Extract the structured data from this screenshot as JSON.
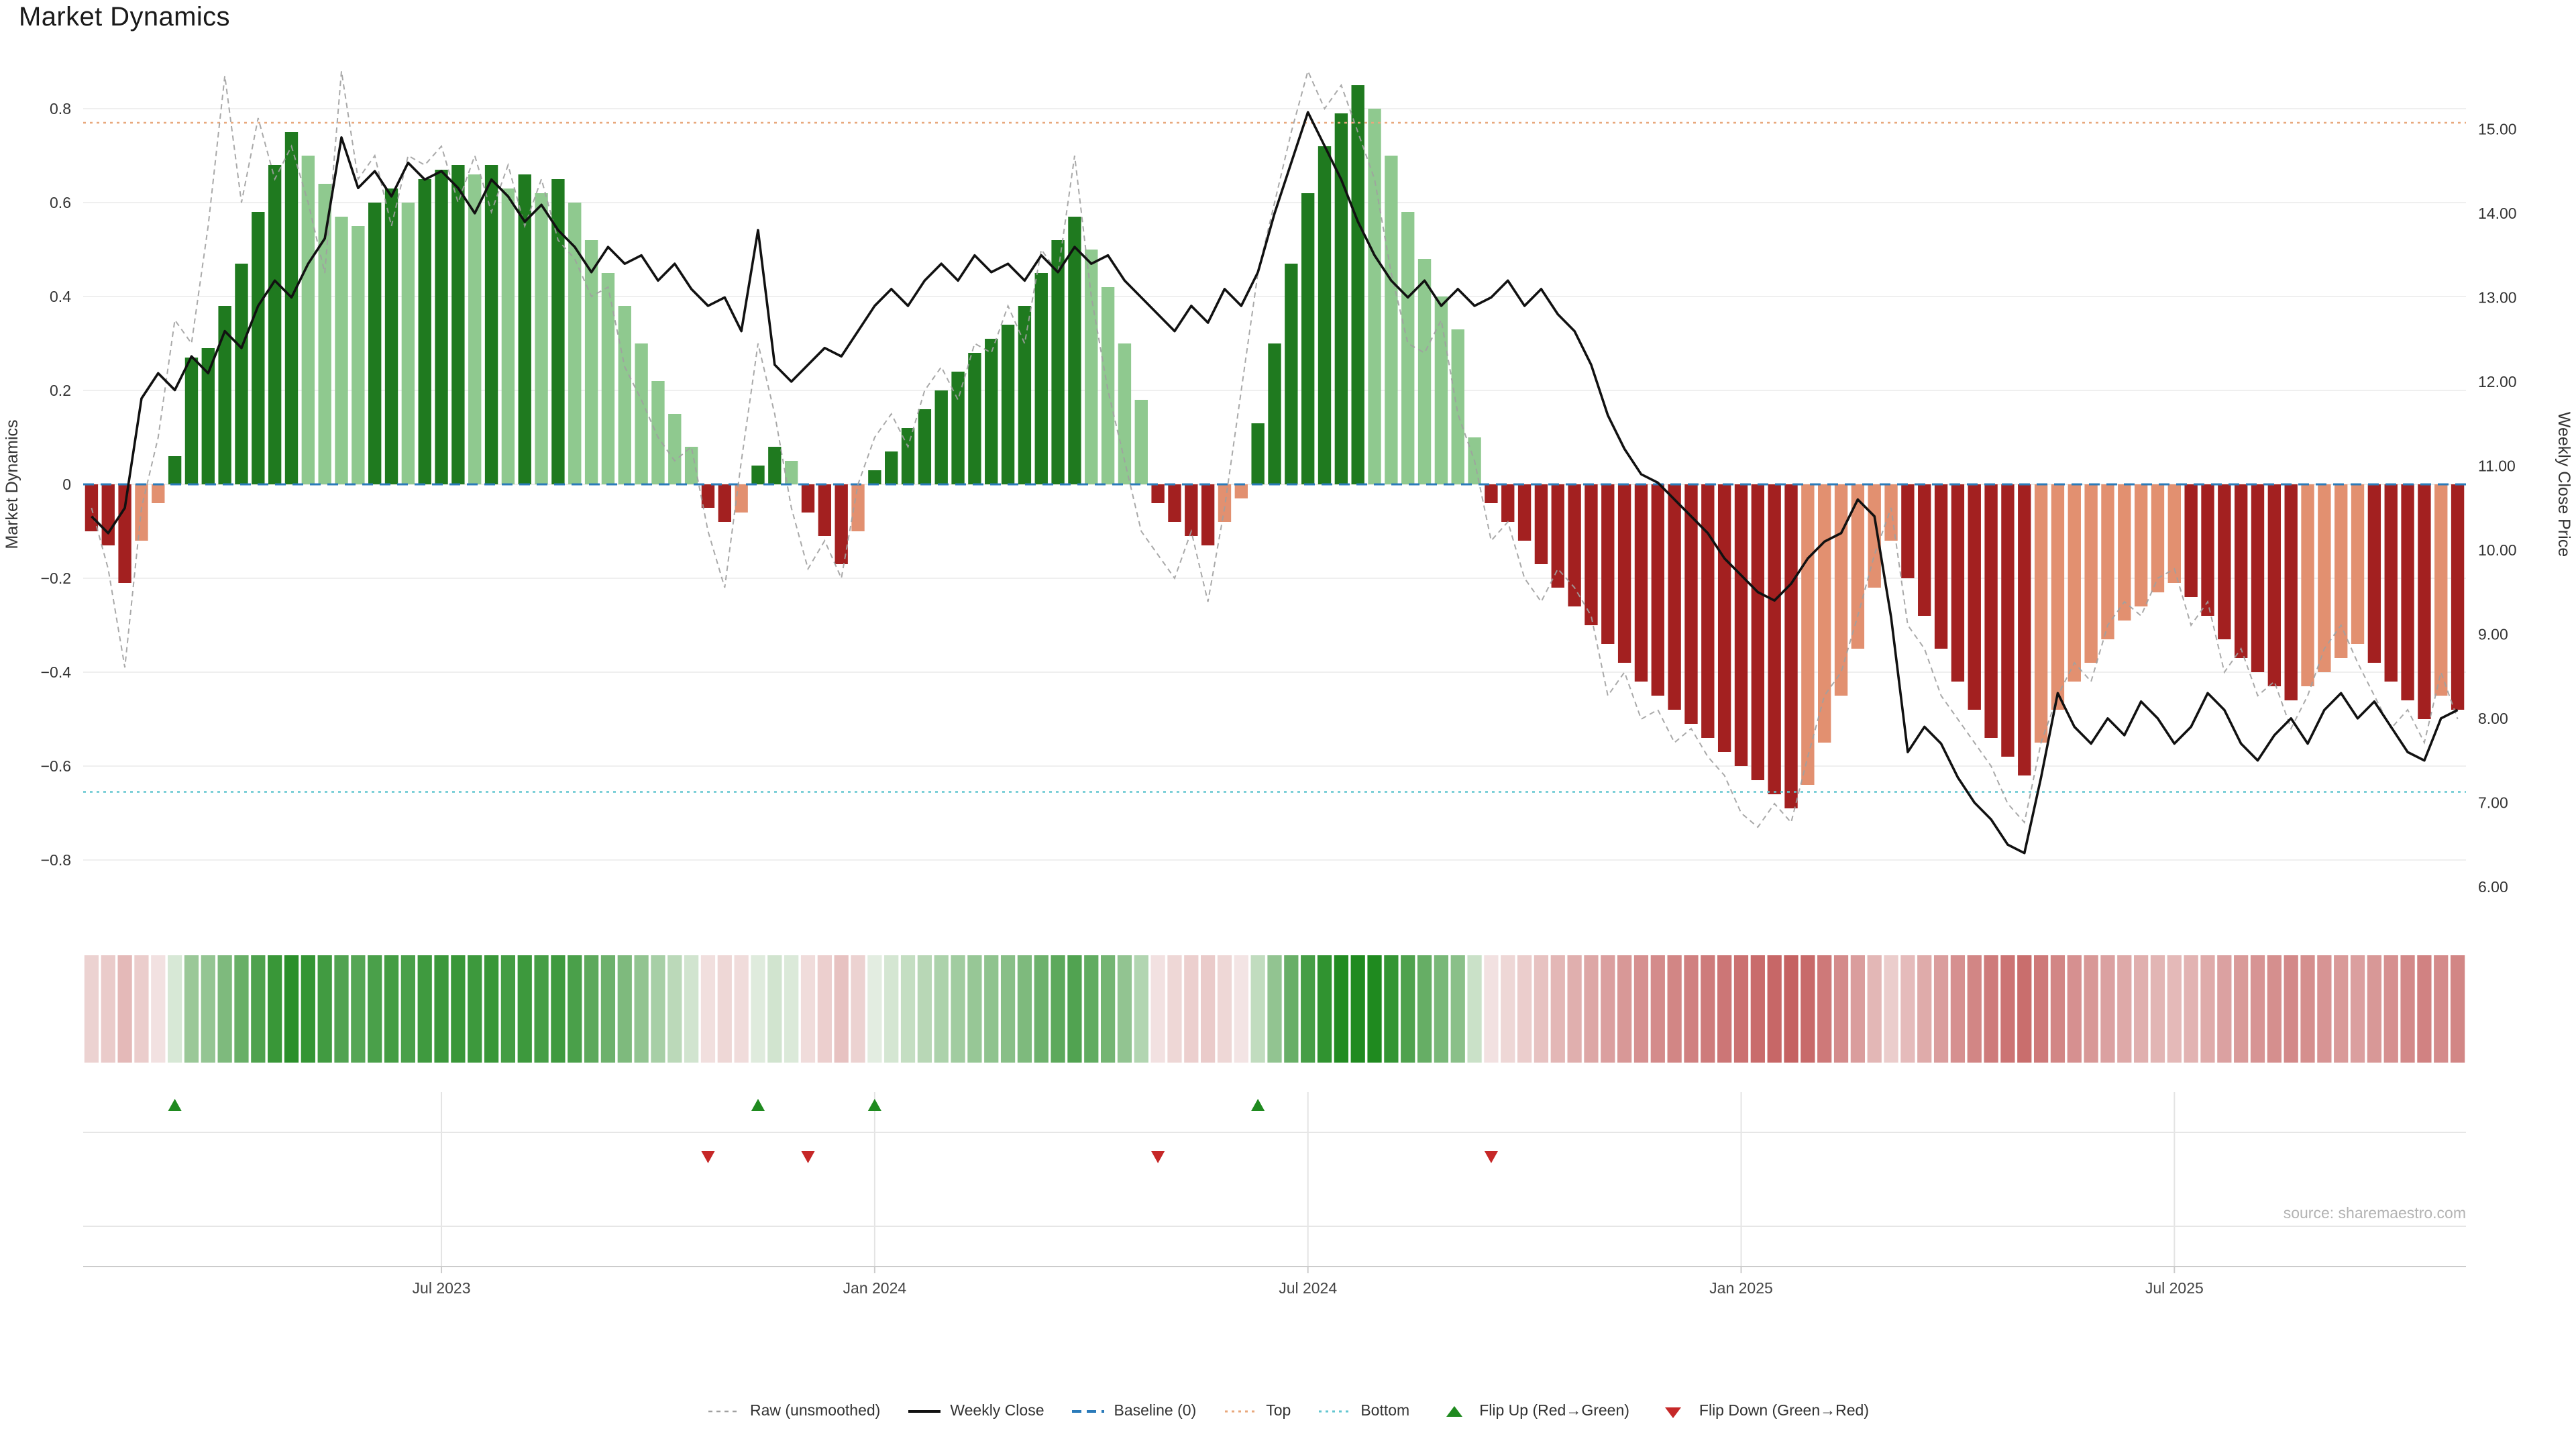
{
  "title": "Market Dynamics",
  "source": "source: sharemaestro.com",
  "axes": {
    "left_label": "Market Dynamics",
    "right_label": "Weekly Close Price",
    "left_ticks": [
      {
        "label": "0.8",
        "value": 0.8
      },
      {
        "label": "0.6",
        "value": 0.6
      },
      {
        "label": "0.4",
        "value": 0.4
      },
      {
        "label": "0.2",
        "value": 0.2
      },
      {
        "label": "0",
        "value": 0
      },
      {
        "label": "−0.2",
        "value": -0.2
      },
      {
        "label": "−0.4",
        "value": -0.4
      },
      {
        "label": "−0.6",
        "value": -0.6
      },
      {
        "label": "−0.8",
        "value": -0.8
      }
    ],
    "right_ticks": [
      {
        "label": "15.00",
        "value": 15
      },
      {
        "label": "14.00",
        "value": 14
      },
      {
        "label": "13.00",
        "value": 13
      },
      {
        "label": "12.00",
        "value": 12
      },
      {
        "label": "11.00",
        "value": 11
      },
      {
        "label": "10.00",
        "value": 10
      },
      {
        "label": "9.00",
        "value": 9
      },
      {
        "label": "8.00",
        "value": 8
      },
      {
        "label": "7.00",
        "value": 7
      },
      {
        "label": "6.00",
        "value": 6
      }
    ],
    "x_ticks": [
      {
        "label": "Jul 2023",
        "week": 21
      },
      {
        "label": "Jan 2024",
        "week": 47
      },
      {
        "label": "Jul 2024",
        "week": 73
      },
      {
        "label": "Jan 2025",
        "week": 99
      },
      {
        "label": "Jul 2025",
        "week": 125
      }
    ]
  },
  "chart_data": {
    "type": "bar+line",
    "x_unit": "week_index",
    "n_weeks": 143,
    "ylim_left": [
      -0.9,
      0.9
    ],
    "ylim_right": [
      5.76,
      15.8
    ],
    "grid": "horizontal-faint",
    "legend_position": "bottom-center",
    "series": [
      {
        "name": "Market Dynamics (smoothed, bars)",
        "axis": "left",
        "values": [
          -0.1,
          -0.13,
          -0.21,
          -0.12,
          -0.04,
          0.06,
          0.27,
          0.29,
          0.38,
          0.47,
          0.58,
          0.68,
          0.75,
          0.7,
          0.64,
          0.57,
          0.55,
          0.6,
          0.63,
          0.6,
          0.65,
          0.67,
          0.68,
          0.66,
          0.68,
          0.63,
          0.66,
          0.62,
          0.65,
          0.6,
          0.52,
          0.45,
          0.38,
          0.3,
          0.22,
          0.15,
          0.08,
          -0.05,
          -0.08,
          -0.06,
          0.04,
          0.08,
          0.05,
          -0.06,
          -0.11,
          -0.17,
          -0.1,
          0.03,
          0.07,
          0.12,
          0.16,
          0.2,
          0.24,
          0.28,
          0.31,
          0.34,
          0.38,
          0.45,
          0.52,
          0.57,
          0.5,
          0.42,
          0.3,
          0.18,
          -0.04,
          -0.08,
          -0.11,
          -0.13,
          -0.08,
          -0.03,
          0.13,
          0.3,
          0.47,
          0.62,
          0.72,
          0.79,
          0.85,
          0.8,
          0.7,
          0.58,
          0.48,
          0.4,
          0.33,
          0.1,
          -0.04,
          -0.08,
          -0.12,
          -0.17,
          -0.22,
          -0.26,
          -0.3,
          -0.34,
          -0.38,
          -0.42,
          -0.45,
          -0.48,
          -0.51,
          -0.54,
          -0.57,
          -0.6,
          -0.63,
          -0.66,
          -0.69,
          -0.64,
          -0.55,
          -0.45,
          -0.35,
          -0.22,
          -0.12,
          -0.2,
          -0.28,
          -0.35,
          -0.42,
          -0.48,
          -0.54,
          -0.58,
          -0.62,
          -0.55,
          -0.48,
          -0.42,
          -0.38,
          -0.33,
          -0.29,
          -0.26,
          -0.23,
          -0.21,
          -0.24,
          -0.28,
          -0.33,
          -0.37,
          -0.4,
          -0.43,
          -0.46,
          -0.43,
          -0.4,
          -0.37,
          -0.34,
          -0.38,
          -0.42,
          -0.46,
          -0.5,
          -0.45,
          -0.48
        ]
      },
      {
        "name": "Raw (unsmoothed)",
        "axis": "left",
        "values": [
          -0.05,
          -0.18,
          -0.39,
          -0.05,
          0.1,
          0.35,
          0.3,
          0.55,
          0.87,
          0.6,
          0.78,
          0.65,
          0.72,
          0.6,
          0.45,
          0.88,
          0.65,
          0.7,
          0.55,
          0.7,
          0.68,
          0.72,
          0.6,
          0.7,
          0.58,
          0.68,
          0.55,
          0.65,
          0.52,
          0.48,
          0.4,
          0.42,
          0.25,
          0.18,
          0.1,
          0.05,
          0.08,
          -0.1,
          -0.22,
          0.05,
          0.3,
          0.15,
          -0.05,
          -0.18,
          -0.12,
          -0.2,
          0.0,
          0.1,
          0.15,
          0.08,
          0.2,
          0.25,
          0.18,
          0.3,
          0.28,
          0.38,
          0.3,
          0.5,
          0.45,
          0.7,
          0.4,
          0.2,
          0.05,
          -0.1,
          -0.15,
          -0.2,
          -0.1,
          -0.25,
          -0.05,
          0.2,
          0.45,
          0.6,
          0.75,
          0.88,
          0.8,
          0.85,
          0.75,
          0.65,
          0.45,
          0.3,
          0.28,
          0.35,
          0.15,
          0.05,
          -0.12,
          -0.08,
          -0.2,
          -0.25,
          -0.18,
          -0.22,
          -0.28,
          -0.45,
          -0.4,
          -0.5,
          -0.48,
          -0.55,
          -0.52,
          -0.58,
          -0.62,
          -0.7,
          -0.73,
          -0.68,
          -0.72,
          -0.58,
          -0.45,
          -0.4,
          -0.28,
          -0.15,
          -0.05,
          -0.3,
          -0.35,
          -0.45,
          -0.5,
          -0.55,
          -0.6,
          -0.68,
          -0.72,
          -0.55,
          -0.45,
          -0.38,
          -0.42,
          -0.3,
          -0.25,
          -0.28,
          -0.2,
          -0.18,
          -0.3,
          -0.25,
          -0.4,
          -0.35,
          -0.45,
          -0.42,
          -0.52,
          -0.45,
          -0.35,
          -0.3,
          -0.38,
          -0.45,
          -0.52,
          -0.48,
          -0.55,
          -0.4,
          -0.5
        ]
      },
      {
        "name": "Weekly Close",
        "axis": "right",
        "values": [
          10.4,
          10.2,
          10.5,
          11.8,
          12.1,
          11.9,
          12.3,
          12.1,
          12.6,
          12.4,
          12.9,
          13.2,
          13.0,
          13.4,
          13.7,
          14.9,
          14.3,
          14.5,
          14.2,
          14.6,
          14.4,
          14.5,
          14.3,
          14.0,
          14.4,
          14.2,
          13.9,
          14.1,
          13.8,
          13.6,
          13.3,
          13.6,
          13.4,
          13.5,
          13.2,
          13.4,
          13.1,
          12.9,
          13.0,
          12.6,
          13.8,
          12.2,
          12.0,
          12.2,
          12.4,
          12.3,
          12.6,
          12.9,
          13.1,
          12.9,
          13.2,
          13.4,
          13.2,
          13.5,
          13.3,
          13.4,
          13.2,
          13.5,
          13.3,
          13.6,
          13.4,
          13.5,
          13.2,
          13.0,
          12.8,
          12.6,
          12.9,
          12.7,
          13.1,
          12.9,
          13.3,
          14.0,
          14.6,
          15.2,
          14.8,
          14.4,
          13.9,
          13.5,
          13.2,
          13.0,
          13.2,
          12.9,
          13.1,
          12.9,
          13.0,
          13.2,
          12.9,
          13.1,
          12.8,
          12.6,
          12.2,
          11.6,
          11.2,
          10.9,
          10.8,
          10.6,
          10.4,
          10.2,
          9.9,
          9.7,
          9.5,
          9.4,
          9.6,
          9.9,
          10.1,
          10.2,
          10.6,
          10.4,
          9.2,
          7.6,
          7.9,
          7.7,
          7.3,
          7.0,
          6.8,
          6.5,
          6.4,
          7.3,
          8.3,
          7.9,
          7.7,
          8.0,
          7.8,
          8.2,
          8.0,
          7.7,
          7.9,
          8.3,
          8.1,
          7.7,
          7.5,
          7.8,
          8.0,
          7.7,
          8.1,
          8.3,
          8.0,
          8.2,
          7.9,
          7.6,
          7.5,
          8.0,
          8.1
        ]
      }
    ],
    "reference_lines": {
      "baseline": 0,
      "top": 0.77,
      "bottom": -0.655
    },
    "flip_up_weeks": [
      5,
      40,
      47,
      70
    ],
    "flip_down_weeks": [
      37,
      43,
      64,
      84
    ]
  },
  "colors": {
    "bar_green_dark": "#1f7a1f",
    "bar_green_light": "#8fc98f",
    "bar_red_dark": "#a32020",
    "bar_red_light": "#e29070",
    "raw_line": "#a0a0a0",
    "close_line": "#111111",
    "baseline": "#2b7bba",
    "top_line": "#e8a87c",
    "bottom_line": "#62c6d0",
    "flip_up": "#1f8a1f",
    "flip_down": "#c62828",
    "strip_green": "#1f8a1f",
    "strip_red": "#bf5050",
    "grid": "#efefef"
  },
  "legend": {
    "items": [
      {
        "label": "Raw (unsmoothed)",
        "icon": "raw-line"
      },
      {
        "label": "Weekly Close",
        "icon": "close-line"
      },
      {
        "label": "Baseline (0)",
        "icon": "baseline-line"
      },
      {
        "label": "Top",
        "icon": "top-line"
      },
      {
        "label": "Bottom",
        "icon": "bottom-line"
      },
      {
        "label": "Flip Up (Red→Green)",
        "icon": "flip-up-triangle"
      },
      {
        "label": "Flip Down (Green→Red)",
        "icon": "flip-down-triangle"
      }
    ]
  }
}
